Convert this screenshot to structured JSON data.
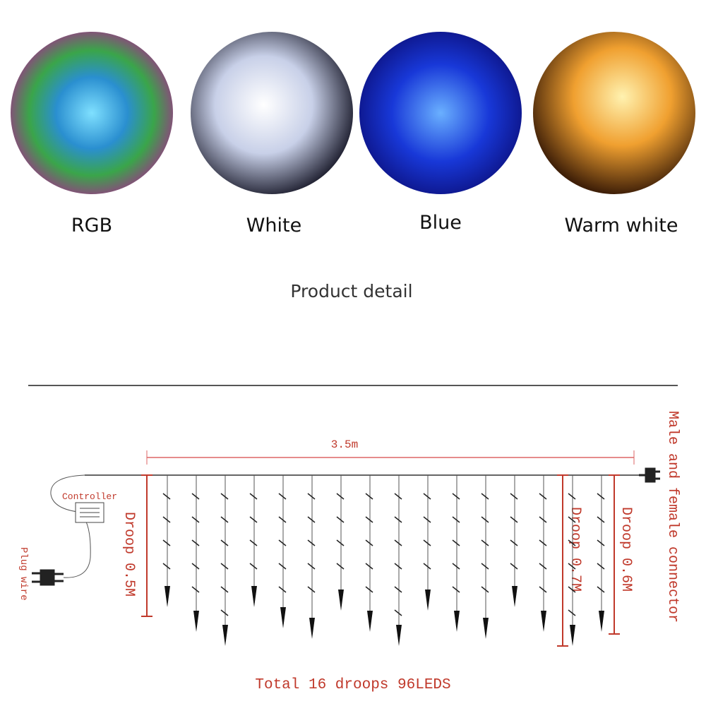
{
  "variants": [
    {
      "label": "RGB"
    },
    {
      "label": "White"
    },
    {
      "label": "Blue"
    },
    {
      "label": "Warm white"
    }
  ],
  "section_title": "Product detail",
  "diagram": {
    "width_label": "3.5m",
    "controller_label": "Controller",
    "plug_label": "Plug wire",
    "droop_labels": [
      "Droop 0.5M",
      "Droop 0.7M",
      "Droop 0.6M"
    ],
    "connector_label": "Male and female connector",
    "total_label": "Total 16 droops 96LEDS"
  }
}
